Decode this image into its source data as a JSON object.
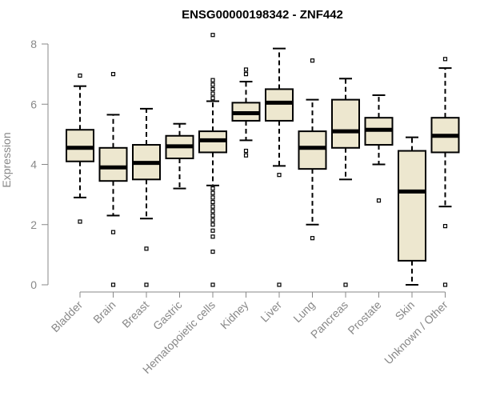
{
  "chart_data": {
    "type": "boxplot",
    "title": "ENSG00000198342 - ZNF442",
    "xlabel": "",
    "ylabel": "Expression",
    "ylim": [
      0,
      8
    ],
    "yticks": [
      0,
      2,
      4,
      6,
      8
    ],
    "colors": {
      "box_fill": "#ede7cf",
      "box_stroke": "#000000",
      "axis": "#888888"
    },
    "categories": [
      "Bladder",
      "Brain",
      "Breast",
      "Gastric",
      "Hematopoietic cells",
      "Kidney",
      "Liver",
      "Lung",
      "Pancreas",
      "Prostate",
      "Skin",
      "Unknown / Other"
    ],
    "boxes": [
      {
        "name": "Bladder",
        "whisker_low": 2.9,
        "q1": 4.1,
        "median": 4.55,
        "q3": 5.15,
        "whisker_high": 6.6,
        "outliers": [
          2.1,
          6.95
        ]
      },
      {
        "name": "Brain",
        "whisker_low": 2.3,
        "q1": 3.45,
        "median": 3.9,
        "q3": 4.55,
        "whisker_high": 5.65,
        "outliers": [
          0,
          1.75,
          7.0
        ]
      },
      {
        "name": "Breast",
        "whisker_low": 2.2,
        "q1": 3.5,
        "median": 4.05,
        "q3": 4.65,
        "whisker_high": 5.85,
        "outliers": [
          0,
          1.2
        ]
      },
      {
        "name": "Gastric",
        "whisker_low": 3.2,
        "q1": 4.2,
        "median": 4.6,
        "q3": 4.95,
        "whisker_high": 5.35,
        "outliers": []
      },
      {
        "name": "Hematopoietic cells",
        "whisker_low": 3.3,
        "q1": 4.4,
        "median": 4.8,
        "q3": 5.1,
        "whisker_high": 6.1,
        "outliers": [
          0,
          1.1,
          1.6,
          1.8,
          2.0,
          2.15,
          2.3,
          2.45,
          2.6,
          2.75,
          2.9,
          3.05,
          3.2,
          6.2,
          6.35,
          6.5,
          6.65,
          6.8,
          8.3
        ]
      },
      {
        "name": "Kidney",
        "whisker_low": 4.8,
        "q1": 5.45,
        "median": 5.7,
        "q3": 6.05,
        "whisker_high": 6.75,
        "outliers": [
          4.3,
          4.45,
          7.0,
          7.15
        ]
      },
      {
        "name": "Liver",
        "whisker_low": 3.95,
        "q1": 5.45,
        "median": 6.05,
        "q3": 6.5,
        "whisker_high": 7.85,
        "outliers": [
          0,
          3.65
        ]
      },
      {
        "name": "Lung",
        "whisker_low": 2.0,
        "q1": 3.85,
        "median": 4.55,
        "q3": 5.1,
        "whisker_high": 6.15,
        "outliers": [
          1.55,
          7.45
        ]
      },
      {
        "name": "Pancreas",
        "whisker_low": 3.5,
        "q1": 4.55,
        "median": 5.1,
        "q3": 6.15,
        "whisker_high": 6.85,
        "outliers": [
          0
        ]
      },
      {
        "name": "Prostate",
        "whisker_low": 4.0,
        "q1": 4.65,
        "median": 5.15,
        "q3": 5.55,
        "whisker_high": 6.3,
        "outliers": [
          2.8
        ]
      },
      {
        "name": "Skin",
        "whisker_low": 0,
        "q1": 0.8,
        "median": 3.1,
        "q3": 4.45,
        "whisker_high": 4.9,
        "outliers": []
      },
      {
        "name": "Unknown / Other",
        "whisker_low": 2.6,
        "q1": 4.4,
        "median": 4.95,
        "q3": 5.55,
        "whisker_high": 7.2,
        "outliers": [
          0,
          1.95,
          7.5
        ]
      }
    ]
  }
}
